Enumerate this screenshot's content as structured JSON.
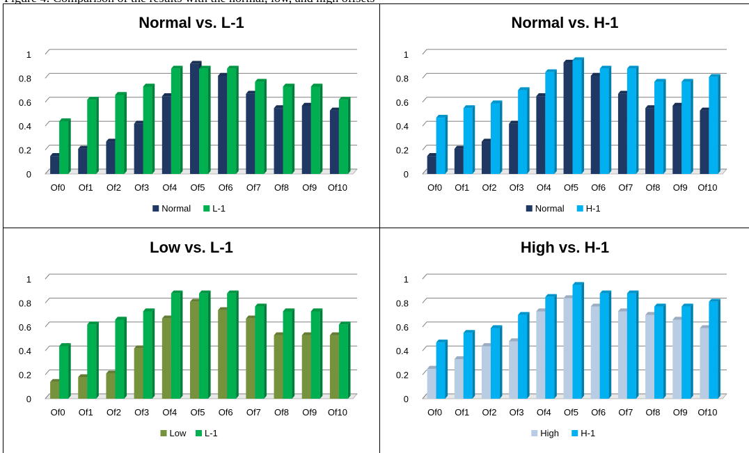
{
  "caption_fragment": "Figure 4: Comparison of the results with the normal, low, and high offsets",
  "colors": {
    "normal": "#1f3864",
    "green": "#00b050",
    "low": "#76923c",
    "blue": "#00b0f0",
    "high": "#b8cce4",
    "grid": "#808080",
    "text": "#000000"
  },
  "chart_data": [
    {
      "type": "bar",
      "title": "Normal vs. L-1",
      "categories": [
        "Of0",
        "Of1",
        "Of2",
        "Of3",
        "Of4",
        "Of5",
        "Of6",
        "Of7",
        "Of8",
        "Of9",
        "Of10"
      ],
      "ylim": [
        0,
        1
      ],
      "yticks": [
        "0",
        "0.2",
        "0.4",
        "0.6",
        "0.8",
        "1"
      ],
      "grid": true,
      "legend": "bottom",
      "series": [
        {
          "name": "Normal",
          "color": "#1f3864",
          "values": [
            0.15,
            0.21,
            0.27,
            0.42,
            0.65,
            0.92,
            0.82,
            0.67,
            0.55,
            0.57,
            0.53
          ]
        },
        {
          "name": "L-1",
          "color": "#00b050",
          "values": [
            0.44,
            0.62,
            0.66,
            0.73,
            0.88,
            0.88,
            0.88,
            0.77,
            0.73,
            0.73,
            0.62
          ]
        }
      ]
    },
    {
      "type": "bar",
      "title": "Normal vs. H-1",
      "categories": [
        "Of0",
        "Of1",
        "Of2",
        "Of3",
        "Of4",
        "Of5",
        "Of6",
        "Of7",
        "Of8",
        "Of9",
        "Of10"
      ],
      "ylim": [
        0,
        1
      ],
      "yticks": [
        "0",
        "0.2",
        "0.4",
        "0.6",
        "0.8",
        "1"
      ],
      "grid": true,
      "legend": "bottom",
      "series": [
        {
          "name": "Normal",
          "color": "#1f3864",
          "values": [
            0.15,
            0.21,
            0.27,
            0.42,
            0.65,
            0.93,
            0.82,
            0.67,
            0.55,
            0.57,
            0.53
          ]
        },
        {
          "name": "H-1",
          "color": "#00b0f0",
          "values": [
            0.47,
            0.55,
            0.59,
            0.7,
            0.85,
            0.95,
            0.88,
            0.88,
            0.77,
            0.77,
            0.81
          ]
        }
      ]
    },
    {
      "type": "bar",
      "title": "Low vs. L-1",
      "categories": [
        "Of0",
        "Of1",
        "Of2",
        "Of3",
        "Of4",
        "Of5",
        "Of6",
        "Of7",
        "Of8",
        "Of9",
        "Of10"
      ],
      "ylim": [
        0,
        1
      ],
      "yticks": [
        "0",
        "0.2",
        "0.4",
        "0.6",
        "0.8",
        "1"
      ],
      "grid": true,
      "legend": "bottom",
      "series": [
        {
          "name": "Low",
          "color": "#76923c",
          "values": [
            0.14,
            0.18,
            0.21,
            0.42,
            0.67,
            0.81,
            0.74,
            0.67,
            0.53,
            0.53,
            0.53
          ]
        },
        {
          "name": "L-1",
          "color": "#00b050",
          "values": [
            0.44,
            0.62,
            0.66,
            0.73,
            0.88,
            0.88,
            0.88,
            0.77,
            0.73,
            0.73,
            0.62
          ]
        }
      ]
    },
    {
      "type": "bar",
      "title": "High vs. H-1",
      "categories": [
        "Of0",
        "Of1",
        "Of2",
        "Of3",
        "Of4",
        "Of5",
        "Of6",
        "Of7",
        "Of8",
        "Of9",
        "Of10"
      ],
      "ylim": [
        0,
        1
      ],
      "yticks": [
        "0",
        "0.2",
        "0.4",
        "0.6",
        "0.8",
        "1"
      ],
      "grid": true,
      "legend": "bottom",
      "series": [
        {
          "name": "High",
          "color": "#b8cce4",
          "values": [
            0.25,
            0.33,
            0.44,
            0.48,
            0.73,
            0.84,
            0.77,
            0.73,
            0.7,
            0.66,
            0.59
          ]
        },
        {
          "name": "H-1",
          "color": "#00b0f0",
          "values": [
            0.47,
            0.55,
            0.59,
            0.7,
            0.85,
            0.95,
            0.88,
            0.88,
            0.77,
            0.77,
            0.81
          ]
        }
      ]
    }
  ]
}
